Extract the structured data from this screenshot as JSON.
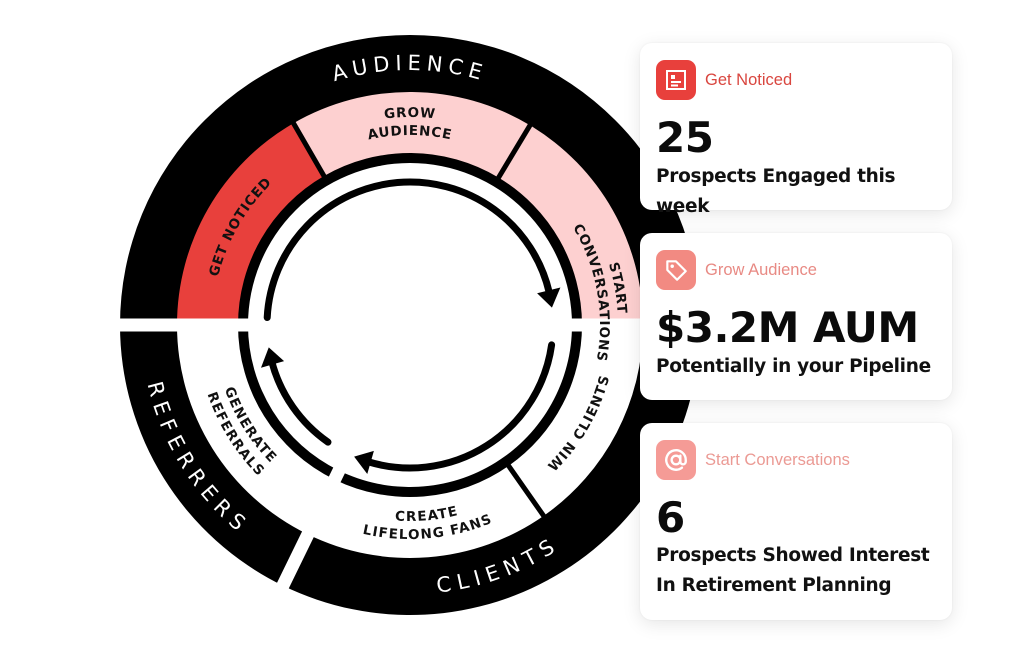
{
  "diagram": {
    "outer_segments": [
      {
        "label": "AUDIENCE"
      },
      {
        "label": "CLIENTS"
      },
      {
        "label": "REFERRERS"
      }
    ],
    "stages": [
      {
        "line1": "GET NOTICED",
        "line2": "",
        "color": "#e8403c"
      },
      {
        "line1": "GROW",
        "line2": "AUDIENCE",
        "color": "#fdd0d0"
      },
      {
        "line1": "START",
        "line2": "CONVERSATIONS",
        "color": "#fdd0d0"
      },
      {
        "line1": "WIN CLIENTS",
        "line2": "",
        "color": "#ffffff"
      },
      {
        "line1": "CREATE",
        "line2": "LIFELONG FANS",
        "color": "#ffffff"
      },
      {
        "line1": "GENERATE",
        "line2": "REFERRALS",
        "color": "#ffffff"
      }
    ]
  },
  "cards": [
    {
      "title": "Get Noticed",
      "icon": "newspaper-icon",
      "value": "25",
      "subtitle_lines": [
        "Prospects Engaged this week"
      ],
      "icon_color": "#e8403c",
      "title_color": "#d9463f"
    },
    {
      "title": "Grow Audience",
      "icon": "tag-icon",
      "value": "$3.2M AUM",
      "subtitle_lines": [
        "Potentially in your Pipeline"
      ],
      "icon_color": "#f28a82",
      "title_color": "#e88a84"
    },
    {
      "title": "Start Conversations",
      "icon": "at-sign-icon",
      "value": "6",
      "subtitle_lines": [
        "Prospects Showed Interest",
        "In Retirement Planning"
      ],
      "icon_color": "#f59b96",
      "title_color": "#eb9a94"
    }
  ]
}
